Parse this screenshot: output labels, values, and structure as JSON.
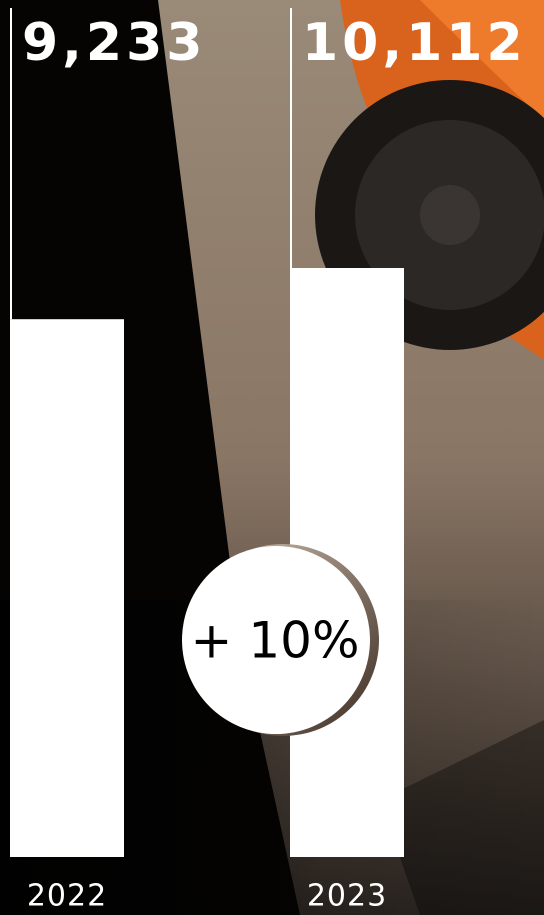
{
  "chart_data": {
    "type": "bar",
    "categories": [
      "2022",
      "2023"
    ],
    "values": [
      9233,
      10112
    ],
    "value_labels": [
      "9,233",
      "10,112"
    ],
    "color": "#ffffff",
    "annotation": "+ 10%"
  }
}
